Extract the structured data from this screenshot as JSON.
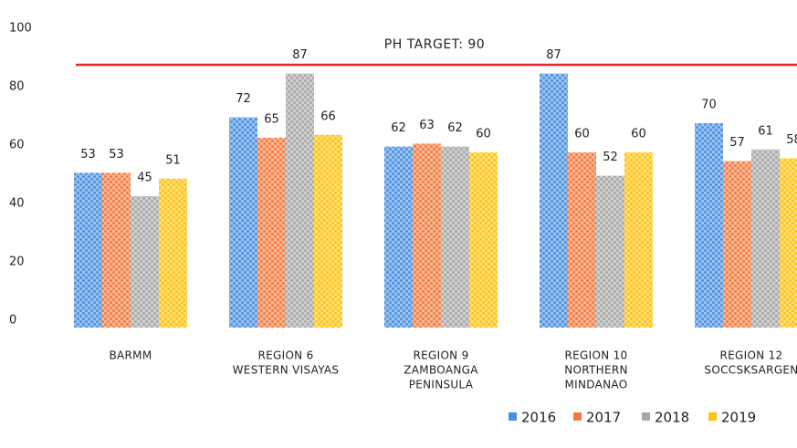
{
  "chart_data": {
    "type": "bar",
    "categories": [
      [
        "BARMM"
      ],
      [
        "REGION 6",
        "WESTERN VISAYAS"
      ],
      [
        "REGION 9",
        "ZAMBOANGA",
        "PENINSULA"
      ],
      [
        "REGION 10",
        "NORTHERN",
        "MINDANAO"
      ],
      [
        "REGION 12",
        "SOCCSKSARGEN"
      ]
    ],
    "series": [
      {
        "name": "2016",
        "color": "#4a90e2",
        "values": [
          53,
          72,
          62,
          87,
          70
        ]
      },
      {
        "name": "2017",
        "color": "#f47b3f",
        "values": [
          53,
          65,
          63,
          60,
          57
        ]
      },
      {
        "name": "2018",
        "color": "#a8a8a8",
        "values": [
          45,
          87,
          62,
          52,
          61
        ]
      },
      {
        "name": "2019",
        "color": "#ffc20e",
        "values": [
          51,
          66,
          60,
          60,
          58
        ]
      }
    ],
    "ylim": [
      0,
      100
    ],
    "yticks": [
      0,
      20,
      40,
      60,
      80,
      100
    ],
    "grid": false,
    "annotation": {
      "label": "PH TARGET: 90",
      "value": 90,
      "color": "#e8262b"
    },
    "legend": "bottom-right"
  }
}
